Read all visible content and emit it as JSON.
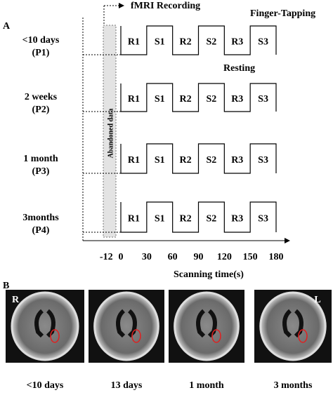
{
  "panel_a": {
    "label": "A",
    "recording": "fMRI Recording",
    "task": "Finger-Tapping",
    "rest": "Resting",
    "abandoned": "Abandoned data",
    "rows": [
      {
        "time": "<10 days",
        "period": "(P1)",
        "blocks": [
          "R1",
          "S1",
          "R2",
          "S2",
          "R3",
          "S3"
        ]
      },
      {
        "time": "2 weeks",
        "period": "(P2)",
        "blocks": [
          "R1",
          "S1",
          "R2",
          "S2",
          "R3",
          "S3"
        ]
      },
      {
        "time": "1 month",
        "period": "(P3)",
        "blocks": [
          "R1",
          "S1",
          "R2",
          "S2",
          "R3",
          "S3"
        ]
      },
      {
        "time": "3months",
        "period": "(P4)",
        "blocks": [
          "R1",
          "S1",
          "R2",
          "S2",
          "R3",
          "S3"
        ]
      }
    ],
    "axis": {
      "ticks": [
        -12,
        0,
        30,
        60,
        90,
        120,
        150,
        180
      ],
      "label": "Scanning time(s)"
    }
  },
  "panel_b": {
    "label": "B",
    "left": "R",
    "right": "L",
    "captions": [
      "<10 days",
      "13 days",
      "1 month",
      "3 months"
    ]
  }
}
